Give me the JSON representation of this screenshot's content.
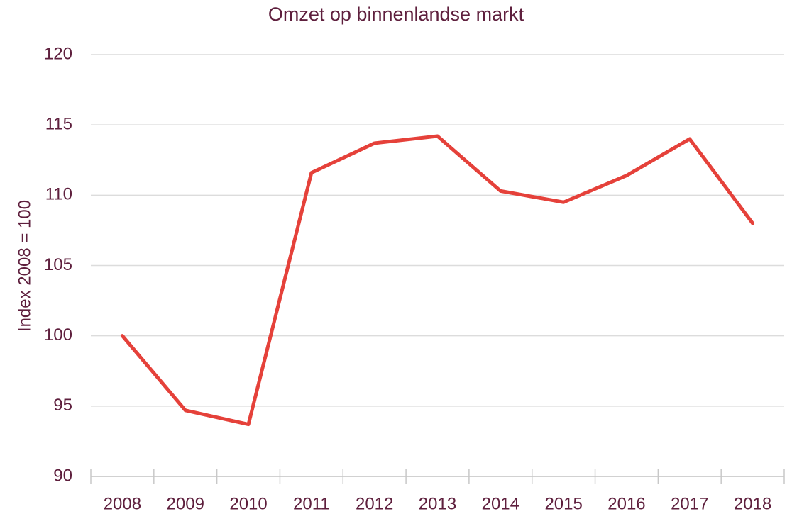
{
  "chart_data": {
    "type": "line",
    "title": "Omzet op binnenlandse markt",
    "y_label": "Index 2008 = 100",
    "categories": [
      "2008",
      "2009",
      "2010",
      "2011",
      "2012",
      "2013",
      "2014",
      "2015",
      "2016",
      "2017",
      "2018"
    ],
    "series": [
      {
        "name": "Omzet",
        "color": "#e5413a",
        "values": [
          100,
          94.7,
          93.7,
          111.6,
          113.7,
          114.2,
          110.3,
          109.5,
          111.4,
          114.0,
          108.0
        ]
      }
    ],
    "ylim": [
      90,
      120
    ],
    "yticks": [
      90,
      95,
      100,
      105,
      110,
      115,
      120
    ],
    "grid": true
  }
}
